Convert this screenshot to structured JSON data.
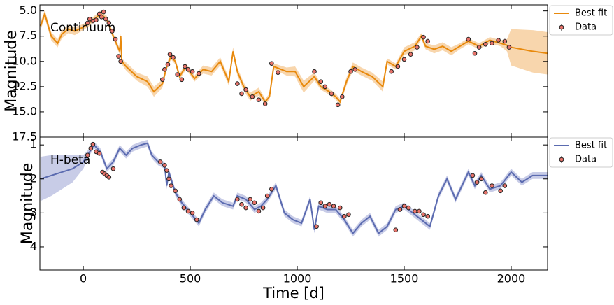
{
  "chart_data": [
    {
      "type": "line",
      "annotation": "Continuum",
      "ylabel": "Magnitude",
      "xlim": [
        -203,
        2170
      ],
      "ylim": [
        17.5,
        4.4
      ],
      "xticks": [
        0,
        500,
        1000,
        1500,
        2000
      ],
      "show_xtick_labels": false,
      "yticks": [
        {
          "value": 5.0,
          "label": "5.0"
        },
        {
          "value": 7.5,
          "label": "7.5"
        },
        {
          "value": 10.0,
          "label": "10.0"
        },
        {
          "value": 12.5,
          "label": "12.5"
        },
        {
          "value": 15.0,
          "label": "15.0"
        },
        {
          "value": 17.5,
          "label": "17.5"
        }
      ],
      "legend": "outside-upper-right",
      "series": [
        {
          "name": "Best fit",
          "type": "line",
          "color": "#e8890c",
          "band_color": "#f3b56a",
          "x": [
            -200,
            -180,
            -150,
            -120,
            -100,
            -70,
            -40,
            0,
            40,
            80,
            110,
            140,
            170,
            175,
            180,
            200,
            250,
            300,
            330,
            370,
            390,
            410,
            430,
            450,
            480,
            520,
            560,
            600,
            640,
            680,
            700,
            720,
            750,
            780,
            820,
            850,
            870,
            890,
            950,
            990,
            1030,
            1080,
            1110,
            1150,
            1180,
            1200,
            1230,
            1260,
            1300,
            1350,
            1400,
            1420,
            1460,
            1500,
            1550,
            1580,
            1600,
            1640,
            1680,
            1720,
            1760,
            1800,
            1850,
            1900,
            1950,
            1980,
            2000,
            2100,
            2170
          ],
          "values": [
            6.5,
            5.3,
            7.5,
            8.2,
            7.3,
            6.8,
            7.0,
            6.6,
            6.0,
            5.3,
            5.8,
            7.5,
            9.0,
            7.5,
            10.0,
            10.5,
            11.5,
            12.0,
            13.0,
            12.2,
            10.5,
            9.5,
            10.0,
            11.5,
            10.5,
            11.7,
            10.8,
            11.0,
            10.0,
            12.0,
            9.0,
            11.0,
            12.5,
            13.5,
            13.0,
            14.0,
            13.5,
            10.5,
            11.0,
            11.0,
            12.5,
            11.5,
            12.5,
            13.0,
            13.5,
            14.0,
            12.0,
            10.5,
            11.0,
            11.5,
            12.5,
            10.0,
            10.5,
            9.0,
            8.5,
            7.5,
            8.5,
            8.8,
            8.5,
            9.0,
            8.5,
            8.0,
            8.5,
            7.9,
            8.2,
            8.4,
            8.6,
            9.0,
            9.2
          ],
          "band": [
            0.4,
            0.4,
            0.4,
            0.4,
            0.4,
            0.4,
            0.4,
            0.3,
            0.3,
            0.3,
            0.3,
            0.3,
            0.3,
            0.3,
            0.3,
            0.4,
            0.4,
            0.5,
            0.5,
            0.4,
            0.3,
            0.3,
            0.3,
            0.3,
            0.3,
            0.3,
            0.4,
            0.4,
            0.4,
            0.4,
            0.4,
            0.4,
            0.4,
            0.4,
            0.4,
            0.3,
            0.3,
            0.3,
            0.4,
            0.5,
            0.6,
            0.4,
            0.3,
            0.3,
            0.3,
            0.3,
            0.4,
            0.4,
            0.4,
            0.4,
            0.5,
            0.3,
            0.3,
            0.4,
            0.4,
            0.3,
            0.3,
            0.4,
            0.4,
            0.4,
            0.3,
            0.3,
            0.3,
            0.3,
            0.3,
            0.6,
            1.8,
            2.1,
            2.1
          ]
        },
        {
          "name": "Data",
          "type": "scatter",
          "color": "#e8736a",
          "edgecolor": "#222222",
          "x": [
            20,
            30,
            45,
            60,
            75,
            85,
            95,
            105,
            120,
            135,
            150,
            165,
            175,
            370,
            380,
            395,
            405,
            420,
            440,
            460,
            475,
            490,
            510,
            540,
            720,
            740,
            760,
            790,
            820,
            850,
            880,
            910,
            1080,
            1110,
            1130,
            1160,
            1190,
            1210,
            1250,
            1270,
            1440,
            1470,
            1500,
            1530,
            1560,
            1590,
            1610,
            1800,
            1830,
            1850,
            1880,
            1910,
            1940,
            1970,
            1990
          ],
          "values": [
            6.2,
            5.8,
            6.0,
            5.9,
            5.3,
            5.6,
            5.1,
            5.8,
            6.2,
            7.0,
            7.8,
            9.5,
            10.0,
            11.8,
            10.8,
            10.3,
            9.3,
            9.6,
            11.3,
            11.8,
            10.5,
            10.8,
            11.0,
            11.2,
            12.2,
            13.2,
            12.8,
            13.5,
            13.8,
            14.2,
            10.2,
            11.1,
            11.0,
            12.0,
            12.5,
            13.2,
            14.3,
            13.5,
            11.0,
            10.8,
            11.0,
            10.5,
            9.8,
            9.3,
            8.6,
            7.6,
            8.0,
            7.8,
            9.2,
            8.6,
            8.3,
            8.2,
            7.9,
            8.0,
            8.6
          ]
        }
      ]
    },
    {
      "type": "line",
      "annotation": "H-beta",
      "ylabel": "Magnitude",
      "xlabel": "Time [d]",
      "xlim": [
        -203,
        2170
      ],
      "ylim": [
        4.68,
        0.77
      ],
      "xticks": [
        0,
        500,
        1000,
        1500,
        2000
      ],
      "show_xtick_labels": true,
      "yticks": [
        1,
        2,
        3,
        4
      ],
      "legend": "outside-upper-right",
      "series": [
        {
          "name": "Best fit",
          "type": "line",
          "color": "#5b6bb0",
          "band_color": "#9aa3d4",
          "x": [
            -200,
            -150,
            -100,
            -50,
            0,
            30,
            50,
            80,
            110,
            140,
            170,
            200,
            230,
            270,
            300,
            320,
            350,
            380,
            390,
            400,
            430,
            460,
            500,
            540,
            570,
            610,
            650,
            700,
            720,
            760,
            800,
            830,
            860,
            900,
            940,
            980,
            1020,
            1060,
            1080,
            1100,
            1140,
            1180,
            1220,
            1260,
            1300,
            1340,
            1380,
            1420,
            1460,
            1500,
            1540,
            1580,
            1620,
            1660,
            1700,
            1740,
            1770,
            1800,
            1830,
            1860,
            1900,
            1950,
            2000,
            2050,
            2100,
            2150,
            2170
          ],
          "values": [
            2.0,
            1.9,
            1.8,
            1.7,
            1.5,
            1.2,
            1.0,
            1.2,
            1.7,
            1.5,
            1.1,
            1.3,
            1.1,
            1.0,
            0.95,
            1.3,
            1.5,
            1.6,
            2.2,
            1.8,
            2.4,
            2.7,
            3.0,
            3.3,
            2.9,
            2.5,
            2.7,
            2.8,
            2.5,
            2.6,
            2.9,
            2.8,
            2.6,
            2.2,
            3.0,
            3.2,
            3.3,
            2.6,
            3.5,
            2.8,
            2.9,
            2.9,
            3.2,
            3.6,
            3.3,
            3.1,
            3.6,
            3.4,
            2.9,
            2.8,
            3.0,
            3.2,
            3.4,
            2.5,
            2.0,
            2.6,
            2.2,
            1.8,
            2.2,
            1.9,
            2.3,
            2.2,
            1.8,
            2.1,
            1.9,
            1.9,
            1.9
          ],
          "band": [
            0.65,
            0.6,
            0.5,
            0.4,
            0.2,
            0.1,
            0.1,
            0.1,
            0.1,
            0.1,
            0.1,
            0.1,
            0.1,
            0.1,
            0.1,
            0.1,
            0.1,
            0.1,
            0.1,
            0.1,
            0.1,
            0.1,
            0.1,
            0.1,
            0.1,
            0.1,
            0.1,
            0.1,
            0.1,
            0.1,
            0.1,
            0.1,
            0.1,
            0.1,
            0.1,
            0.1,
            0.1,
            0.1,
            0.1,
            0.1,
            0.1,
            0.1,
            0.1,
            0.1,
            0.1,
            0.1,
            0.1,
            0.1,
            0.1,
            0.1,
            0.1,
            0.1,
            0.1,
            0.1,
            0.1,
            0.1,
            0.1,
            0.1,
            0.1,
            0.1,
            0.1,
            0.1,
            0.1,
            0.1,
            0.1,
            0.1,
            0.1
          ]
        },
        {
          "name": "Data",
          "type": "scatter",
          "color": "#e8736a",
          "edgecolor": "#222222",
          "x": [
            20,
            35,
            45,
            60,
            75,
            90,
            100,
            110,
            120,
            140,
            360,
            380,
            390,
            400,
            410,
            430,
            450,
            470,
            490,
            510,
            530,
            720,
            740,
            760,
            780,
            800,
            820,
            840,
            860,
            880,
            1090,
            1110,
            1130,
            1150,
            1170,
            1200,
            1220,
            1240,
            1460,
            1480,
            1500,
            1520,
            1550,
            1570,
            1590,
            1610,
            1820,
            1840,
            1860,
            1880,
            1910,
            1950,
            1970
          ],
          "values": [
            1.3,
            1.1,
            0.98,
            1.2,
            1.25,
            1.8,
            1.85,
            1.9,
            1.95,
            1.7,
            1.5,
            1.6,
            1.75,
            2.0,
            2.2,
            2.35,
            2.6,
            2.85,
            2.95,
            3.0,
            3.2,
            2.6,
            2.75,
            2.85,
            2.6,
            2.7,
            2.95,
            2.85,
            2.5,
            2.3,
            3.4,
            2.7,
            2.8,
            2.75,
            2.8,
            2.85,
            3.1,
            3.05,
            3.5,
            2.9,
            2.8,
            2.85,
            2.95,
            2.95,
            3.05,
            3.1,
            1.9,
            2.1,
            2.0,
            2.4,
            2.2,
            2.35,
            2.2
          ]
        }
      ]
    }
  ]
}
